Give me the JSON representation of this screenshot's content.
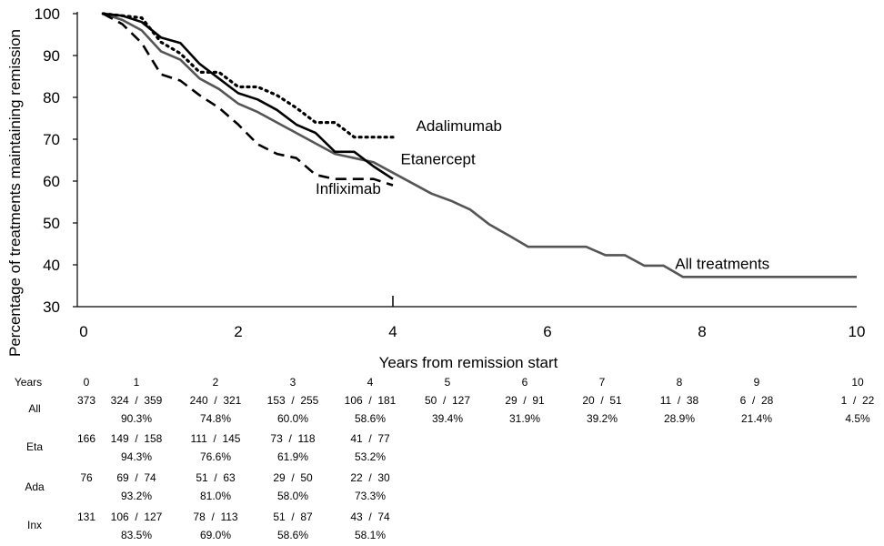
{
  "chart_data": {
    "type": "line",
    "xlabel": "Years from remission start",
    "ylabel": "Percentage of treatments maintaining remission",
    "xlim": [
      0,
      10
    ],
    "ylim": [
      30,
      100
    ],
    "xticks": [
      0,
      2,
      4,
      6,
      8,
      10
    ],
    "yticks": [
      30,
      40,
      50,
      60,
      70,
      80,
      90,
      100
    ],
    "grid": false,
    "legend": "none",
    "series": [
      {
        "name": "All treatments",
        "line_style": "solid",
        "color": "#555555",
        "x": [
          0.25,
          0.5,
          0.75,
          1.0,
          1.25,
          1.5,
          1.75,
          2.0,
          2.25,
          2.5,
          2.75,
          3.0,
          3.25,
          3.5,
          3.75,
          4.0,
          4.25,
          4.5,
          4.75,
          5.0,
          5.25,
          5.5,
          5.75,
          6.0,
          6.25,
          6.5,
          6.75,
          7.0,
          7.25,
          7.5,
          7.75,
          8.0,
          10.0
        ],
        "y": [
          100,
          98.5,
          96,
          91,
          89,
          84.5,
          82,
          78.5,
          76.5,
          74,
          71.5,
          69,
          66.5,
          65.5,
          64.5,
          62,
          59.5,
          57,
          55.3,
          53.2,
          49.6,
          47,
          44.3,
          44.3,
          44.3,
          44.3,
          42.3,
          42.3,
          39.8,
          39.8,
          37.1,
          37.1,
          37.1
        ]
      },
      {
        "name": "Etanercept",
        "line_style": "solid",
        "color": "#000000",
        "x": [
          0.25,
          0.5,
          0.75,
          1.0,
          1.25,
          1.5,
          1.75,
          2.0,
          2.25,
          2.5,
          2.75,
          3.0,
          3.25,
          3.5,
          3.75,
          4.0
        ],
        "y": [
          100,
          99.5,
          98,
          94.3,
          93,
          88,
          84.5,
          81,
          79.5,
          77,
          73.5,
          71.5,
          67,
          67,
          63.5,
          60.5
        ]
      },
      {
        "name": "Adalimumab",
        "line_style": "dotted",
        "color": "#000000",
        "x": [
          0.25,
          0.5,
          0.75,
          1.0,
          1.25,
          1.5,
          1.75,
          2.0,
          2.25,
          2.5,
          2.75,
          3.0,
          3.25,
          3.5,
          3.75,
          4.0
        ],
        "y": [
          100,
          99.5,
          99,
          93.2,
          90.5,
          86,
          86,
          82.5,
          82.5,
          80.5,
          77.5,
          74,
          74,
          70.5,
          70.5,
          70.5
        ]
      },
      {
        "name": "Infliximab",
        "line_style": "dashed",
        "color": "#000000",
        "x": [
          0.25,
          0.5,
          0.75,
          1.0,
          1.25,
          1.5,
          1.75,
          2.0,
          2.25,
          2.5,
          2.75,
          3.0,
          3.25,
          3.5,
          3.75,
          4.0
        ],
        "y": [
          100,
          97.5,
          93,
          85.5,
          84,
          80.5,
          77.5,
          73.5,
          68.8,
          66.5,
          65.5,
          61.5,
          60.5,
          60.5,
          60.5,
          59
        ]
      }
    ],
    "annotations": [
      {
        "text": "Adalimumab",
        "x": 4.3,
        "y": 72
      },
      {
        "text": "Etanercept",
        "x": 4.1,
        "y": 64
      },
      {
        "text": "Infliximab",
        "x": 3.0,
        "y": 57
      },
      {
        "text": "All treatments",
        "x": 7.65,
        "y": 39
      }
    ],
    "table": {
      "header_label": "Years",
      "years": [
        "0",
        "1",
        "2",
        "3",
        "4",
        "5",
        "6",
        "7",
        "8",
        "9",
        "10"
      ],
      "rows": [
        {
          "label": "All",
          "counts": [
            "373",
            "324  /  359",
            "240  /  321",
            "153  /  255",
            "106  /  181",
            "50  /  127",
            "29  /  91",
            "20  /  51",
            "11  /  38",
            "6  /  28",
            "1  /  22"
          ],
          "percents": [
            "",
            "90.3%",
            "74.8%",
            "60.0%",
            "58.6%",
            "39.4%",
            "31.9%",
            "39.2%",
            "28.9%",
            "21.4%",
            "4.5%"
          ]
        },
        {
          "label": "Eta",
          "counts": [
            "166",
            "149  /  158",
            "111  /  145",
            "73  /  118",
            "41  /  77",
            "",
            "",
            "",
            "",
            "",
            ""
          ],
          "percents": [
            "",
            "94.3%",
            "76.6%",
            "61.9%",
            "53.2%",
            "",
            "",
            "",
            "",
            "",
            ""
          ]
        },
        {
          "label": "Ada",
          "counts": [
            "76",
            "69  /  74",
            "51  /  63",
            "29  /  50",
            "22  /  30",
            "",
            "",
            "",
            "",
            "",
            ""
          ],
          "percents": [
            "",
            "93.2%",
            "81.0%",
            "58.0%",
            "73.3%",
            "",
            "",
            "",
            "",
            "",
            ""
          ]
        },
        {
          "label": "Inx",
          "counts": [
            "131",
            "106  /  127",
            "78  /  113",
            "51  /  87",
            "43  /  74",
            "",
            "",
            "",
            "",
            "",
            ""
          ],
          "percents": [
            "",
            "83.5%",
            "69.0%",
            "58.6%",
            "58.1%",
            "",
            "",
            "",
            "",
            "",
            ""
          ]
        }
      ]
    }
  }
}
